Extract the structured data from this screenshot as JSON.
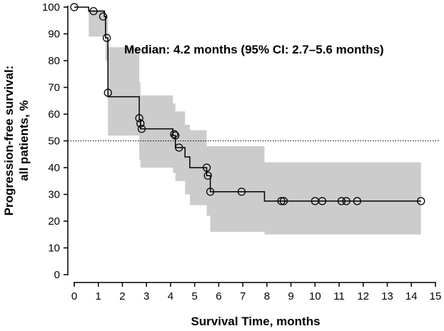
{
  "chart_data": {
    "type": "line",
    "subtype": "kaplan-meier",
    "title": "",
    "xlabel": "Survival Time, months",
    "ylabel_line1": "Progression-free survival:",
    "ylabel_line2": "all patients, %",
    "xlim": [
      0,
      15
    ],
    "ylim": [
      0,
      100
    ],
    "xticks": [
      0,
      1,
      2,
      3,
      4,
      5,
      6,
      7,
      8,
      9,
      10,
      11,
      12,
      13,
      14,
      15
    ],
    "yticks": [
      0,
      10,
      20,
      30,
      40,
      50,
      60,
      70,
      80,
      90,
      100
    ],
    "grid": false,
    "reference_line": {
      "y": 50,
      "style": "dotted"
    },
    "annotation": "Median: 4.2 months (95% CI: 2.7–5.6 months)",
    "colors": {
      "curve": "#000000",
      "ci_band": "#cccccc",
      "reference": "#000000"
    },
    "survival_curve": [
      [
        0,
        100
      ],
      [
        0.6,
        100
      ],
      [
        0.6,
        98.5
      ],
      [
        1.25,
        98.5
      ],
      [
        1.25,
        96.5
      ],
      [
        1.3,
        96.5
      ],
      [
        1.3,
        88.5
      ],
      [
        1.4,
        88.5
      ],
      [
        1.4,
        66.5
      ],
      [
        2.7,
        66.5
      ],
      [
        2.7,
        58
      ],
      [
        2.75,
        58
      ],
      [
        2.75,
        54.5
      ],
      [
        4.1,
        54.5
      ],
      [
        4.1,
        52
      ],
      [
        4.2,
        52
      ],
      [
        4.2,
        47.5
      ],
      [
        4.6,
        47.5
      ],
      [
        4.6,
        44
      ],
      [
        4.8,
        44
      ],
      [
        4.8,
        40
      ],
      [
        5.5,
        40
      ],
      [
        5.5,
        37
      ],
      [
        5.65,
        37
      ],
      [
        5.65,
        31
      ],
      [
        7.9,
        31
      ],
      [
        7.9,
        27.5
      ],
      [
        14.4,
        27.5
      ]
    ],
    "ci_band": {
      "x": [
        0,
        0.6,
        0.6,
        1.25,
        1.25,
        1.3,
        1.3,
        1.4,
        1.4,
        2.7,
        2.7,
        2.75,
        2.75,
        4.1,
        4.1,
        4.2,
        4.2,
        4.6,
        4.6,
        4.8,
        4.8,
        5.5,
        5.5,
        5.65,
        5.65,
        7.9,
        7.9,
        14.4
      ],
      "upper": [
        100,
        100,
        99,
        99,
        99,
        99,
        97,
        97,
        85,
        85,
        72,
        72,
        67,
        67,
        64,
        64,
        61,
        61,
        56,
        56,
        54,
        54,
        48,
        48,
        48,
        48,
        42,
        42
      ],
      "lower": [
        100,
        100,
        89,
        89,
        89,
        89,
        80,
        80,
        52,
        52,
        43,
        43,
        40,
        40,
        38,
        38,
        35,
        35,
        30,
        30,
        26,
        26,
        22,
        22,
        16,
        16,
        15,
        15
      ]
    },
    "censored": [
      [
        0,
        100
      ],
      [
        0.8,
        98.5
      ],
      [
        1.2,
        96.5
      ],
      [
        1.35,
        88.5
      ],
      [
        1.4,
        68
      ],
      [
        2.7,
        58.5
      ],
      [
        2.75,
        56.5
      ],
      [
        2.8,
        54.5
      ],
      [
        4.15,
        52.5
      ],
      [
        4.2,
        52
      ],
      [
        4.35,
        47.5
      ],
      [
        5.5,
        40
      ],
      [
        5.55,
        37
      ],
      [
        5.65,
        31
      ],
      [
        6.95,
        31
      ],
      [
        8.6,
        27.5
      ],
      [
        8.7,
        27.5
      ],
      [
        10.0,
        27.5
      ],
      [
        10.3,
        27.5
      ],
      [
        11.1,
        27.5
      ],
      [
        11.3,
        27.5
      ],
      [
        11.75,
        27.5
      ],
      [
        14.4,
        27.5
      ]
    ]
  }
}
